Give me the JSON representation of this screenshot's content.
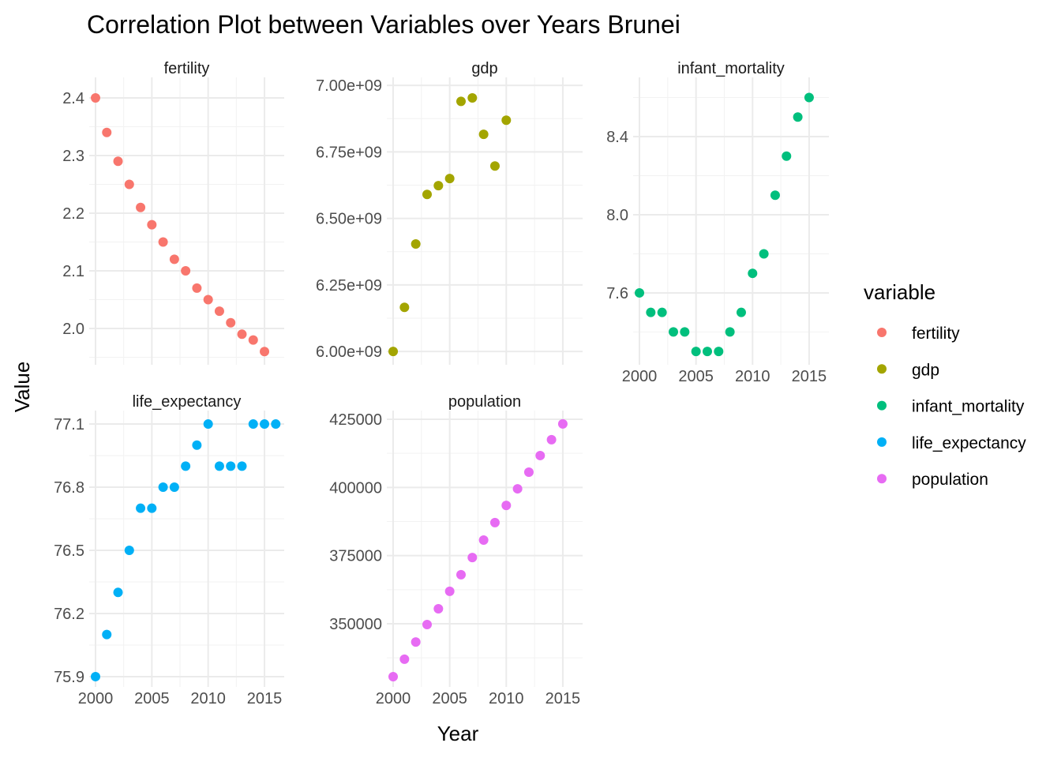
{
  "chart_data": {
    "type": "scatter",
    "title": "Correlation Plot between Variables over Years Brunei",
    "xlabel": "Year",
    "ylabel": "Value",
    "xlim": [
      1999.44,
      2016.75
    ],
    "x_ticks": [
      2000,
      2005,
      2010,
      2015
    ],
    "x_tick_labels": [
      "2000",
      "2005",
      "2010",
      "2015"
    ],
    "grid": true,
    "facet": "variable (free y scales)",
    "legend": {
      "title": "variable",
      "placement": "right",
      "entries": [
        "fertility",
        "gdp",
        "infant_mortality",
        "life_expectancy",
        "population"
      ]
    },
    "series": [
      {
        "name": "fertility",
        "color": "#F8766D",
        "ylim": [
          1.937,
          2.4356
        ],
        "y_ticks": [
          2.0,
          2.1,
          2.2,
          2.3,
          2.4
        ],
        "y_tick_labels": [
          "2.0",
          "2.1",
          "2.2",
          "2.3",
          "2.4"
        ],
        "x": [
          2000,
          2001,
          2002,
          2003,
          2004,
          2005,
          2006,
          2007,
          2008,
          2009,
          2010,
          2011,
          2012,
          2013,
          2014,
          2015
        ],
        "y": [
          2.4,
          2.34,
          2.29,
          2.25,
          2.21,
          2.18,
          2.15,
          2.12,
          2.1,
          2.07,
          2.05,
          2.03,
          2.01,
          1.99,
          1.98,
          1.96
        ]
      },
      {
        "name": "gdp",
        "color": "#A3A500",
        "ylim": [
          5950000000,
          7030000000
        ],
        "y_ticks": [
          6000000000,
          6250000000,
          6500000000,
          6750000000,
          7000000000
        ],
        "y_tick_labels": [
          "6.00e+09",
          "6.25e+09",
          "6.50e+09",
          "6.75e+09",
          "7.00e+09"
        ],
        "x": [
          2000,
          2001,
          2002,
          2003,
          2004,
          2005,
          2006,
          2007,
          2008,
          2009,
          2010
        ],
        "y": [
          6000000000,
          6166000000,
          6404000000,
          6590000000,
          6623000000,
          6650000000,
          6940000000,
          6953000000,
          6816000000,
          6697000000,
          6869000000
        ]
      },
      {
        "name": "infant_mortality",
        "color": "#00BF7D",
        "ylim": [
          7.232,
          8.703
        ],
        "y_ticks": [
          7.6,
          8.0,
          8.4
        ],
        "y_tick_labels": [
          "7.6",
          "8.0",
          "8.4"
        ],
        "x": [
          2000,
          2001,
          2002,
          2003,
          2004,
          2005,
          2006,
          2007,
          2008,
          2009,
          2010,
          2011,
          2012,
          2013,
          2014,
          2015
        ],
        "y": [
          7.6,
          7.5,
          7.5,
          7.4,
          7.4,
          7.3,
          7.3,
          7.3,
          7.4,
          7.5,
          7.7,
          7.8,
          8.1,
          8.3,
          8.5,
          8.6
        ]
      },
      {
        "name": "life_expectancy",
        "color": "#00B0F6",
        "ylim": [
          75.851,
          77.164
        ],
        "y_ticks": [
          75.9,
          76.2,
          76.5,
          76.8,
          77.1
        ],
        "y_tick_labels": [
          "75.9",
          "76.2",
          "76.5",
          "76.8",
          "77.1"
        ],
        "x": [
          2000,
          2001,
          2002,
          2003,
          2004,
          2005,
          2006,
          2007,
          2008,
          2009,
          2010,
          2011,
          2012,
          2013,
          2014,
          2015,
          2016
        ],
        "y": [
          75.9,
          76.1,
          76.3,
          76.5,
          76.7,
          76.7,
          76.8,
          76.8,
          76.9,
          77.0,
          77.1,
          76.9,
          76.9,
          76.9,
          77.1,
          77.1,
          77.1
        ]
      },
      {
        "name": "population",
        "color": "#E76BF3",
        "ylim": [
          326830,
          428190
        ],
        "y_ticks": [
          350000,
          375000,
          400000,
          425000
        ],
        "y_tick_labels": [
          "350000",
          "375000",
          "400000",
          "425000"
        ],
        "x": [
          2000,
          2001,
          2002,
          2003,
          2004,
          2005,
          2006,
          2007,
          2008,
          2009,
          2010,
          2011,
          2012,
          2013,
          2014,
          2015
        ],
        "y": [
          330600,
          337000,
          343300,
          349700,
          355500,
          361900,
          368000,
          374300,
          380700,
          387100,
          393400,
          399500,
          405600,
          411700,
          417500,
          423300
        ]
      }
    ]
  }
}
